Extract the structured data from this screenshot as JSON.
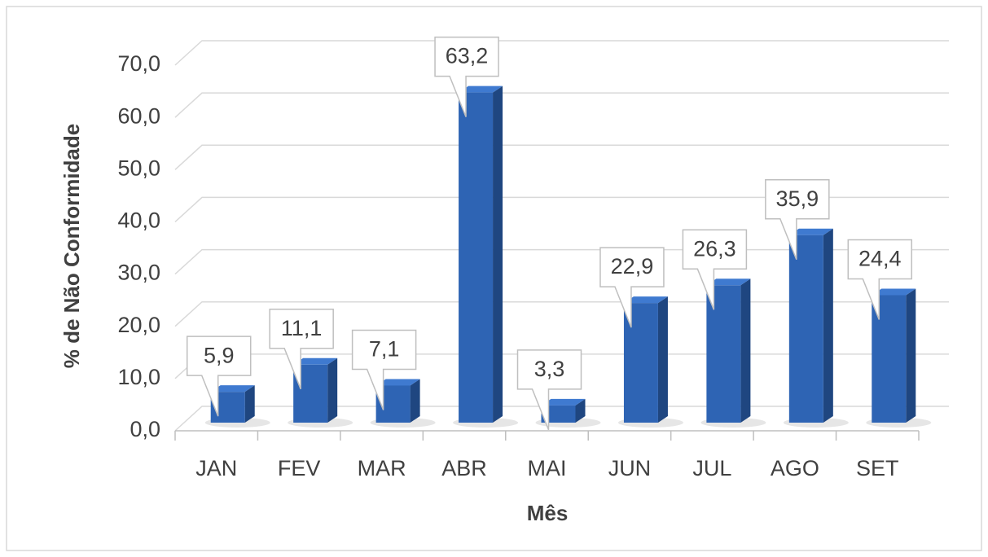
{
  "chart_data": {
    "type": "bar",
    "x_label": "Mês",
    "y_label": "% de Não Conformidade",
    "categories": [
      "JAN",
      "FEV",
      "MAR",
      "ABR",
      "MAI",
      "JUN",
      "JUL",
      "AGO",
      "SET"
    ],
    "values": [
      5.9,
      11.1,
      7.1,
      63.2,
      3.3,
      22.9,
      26.3,
      35.9,
      24.4
    ],
    "value_labels": [
      "5,9",
      "11,1",
      "7,1",
      "63,2",
      "3,3",
      "22,9",
      "26,3",
      "35,9",
      "24,4"
    ],
    "color": "#2e64b4",
    "ylim": [
      0,
      70
    ],
    "yticks": [
      {
        "value": 0,
        "label": "0,0"
      },
      {
        "value": 10,
        "label": "10,0"
      },
      {
        "value": 20,
        "label": "20,0"
      },
      {
        "value": 30,
        "label": "30,0"
      },
      {
        "value": 40,
        "label": "40,0"
      },
      {
        "value": 50,
        "label": "50,0"
      },
      {
        "value": 60,
        "label": "60,0"
      },
      {
        "value": 70,
        "label": "70,0"
      }
    ],
    "grid": true
  }
}
